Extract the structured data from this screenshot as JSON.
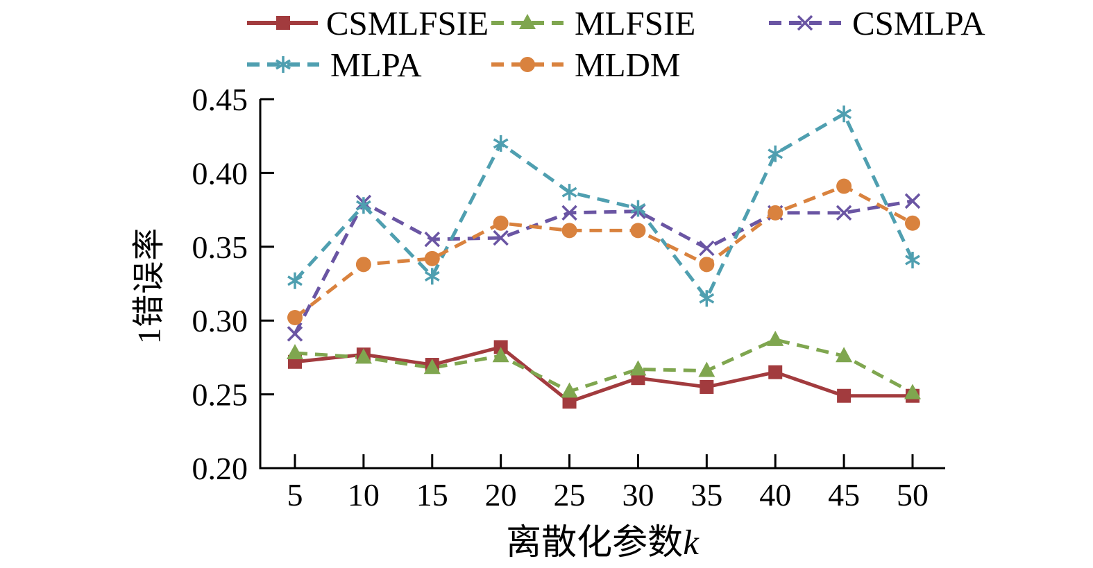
{
  "figure": {
    "background": "#ffffff",
    "axis_color": "#000000",
    "text_color": "#000000"
  },
  "chart_data": {
    "type": "line",
    "title": "",
    "xlabel": "离散化参数k",
    "xlabel_main": "离散化参数",
    "xlabel_var": "k",
    "ylabel": "1错误率",
    "x": [
      5,
      10,
      15,
      20,
      25,
      30,
      35,
      40,
      45,
      50
    ],
    "xticks": [
      5,
      10,
      15,
      20,
      25,
      30,
      35,
      40,
      45,
      50
    ],
    "xlim": [
      5,
      50
    ],
    "ylim": [
      0.2,
      0.45
    ],
    "yticks": [
      0.2,
      0.25,
      0.3,
      0.35,
      0.4,
      0.45
    ],
    "grid": false,
    "legend_position": "top",
    "series": [
      {
        "name": "CSMLFSIE",
        "color": "#a23b3e",
        "dash": "solid",
        "marker": "square",
        "values": [
          0.272,
          0.277,
          0.27,
          0.282,
          0.245,
          0.261,
          0.255,
          0.265,
          0.249,
          0.249
        ]
      },
      {
        "name": "MLFSIE",
        "color": "#7fa64f",
        "dash": "dashed",
        "marker": "triangle",
        "values": [
          0.278,
          0.275,
          0.268,
          0.276,
          0.252,
          0.267,
          0.266,
          0.287,
          0.276,
          0.251
        ]
      },
      {
        "name": "CSMLPA",
        "color": "#6a55a3",
        "dash": "dashed",
        "marker": "x",
        "values": [
          0.291,
          0.38,
          0.355,
          0.356,
          0.373,
          0.374,
          0.349,
          0.373,
          0.373,
          0.381
        ]
      },
      {
        "name": "MLPA",
        "color": "#4f9fb0",
        "dash": "dashed",
        "marker": "asterisk",
        "values": [
          0.327,
          0.378,
          0.33,
          0.42,
          0.387,
          0.376,
          0.315,
          0.413,
          0.44,
          0.341
        ]
      },
      {
        "name": "MLDM",
        "color": "#d9823e",
        "dash": "dashed",
        "marker": "circle",
        "values": [
          0.302,
          0.338,
          0.342,
          0.366,
          0.361,
          0.361,
          0.338,
          0.373,
          0.391,
          0.366
        ]
      }
    ]
  }
}
